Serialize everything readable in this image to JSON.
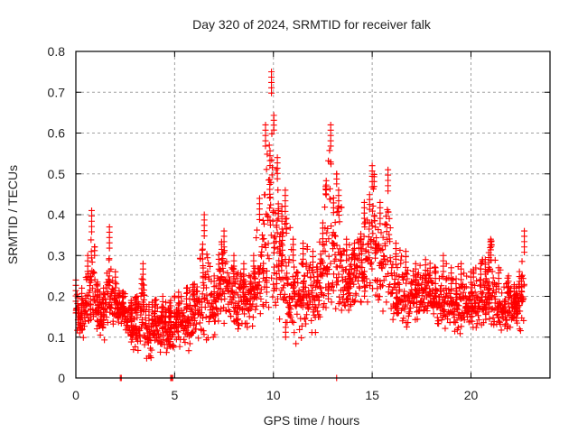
{
  "chart_data": {
    "type": "scatter",
    "title": "Day 320 of 2024, SRMTID for receiver falk",
    "xlabel": "GPS time / hours",
    "ylabel": "SRMTID / TECUs",
    "xlim": [
      0,
      24
    ],
    "ylim": [
      0,
      0.8
    ],
    "xticks": [
      0,
      5,
      10,
      15,
      20
    ],
    "xtick_labels": [
      "0",
      "5",
      "10",
      "15",
      "20"
    ],
    "yticks": [
      0,
      0.1,
      0.2,
      0.3,
      0.4,
      0.5,
      0.6,
      0.7,
      0.8
    ],
    "ytick_labels": [
      "0",
      "0.1",
      "0.2",
      "0.3",
      "0.4",
      "0.5",
      "0.6",
      "0.7",
      "0.8"
    ],
    "grid": true,
    "legend": "none",
    "marker": "plus",
    "color": "#ff0000",
    "series": [
      {
        "name": "SRMTID",
        "envelope": [
          {
            "t": 0.0,
            "lo": 0.1,
            "hi": 0.24
          },
          {
            "t": 0.3,
            "lo": 0.07,
            "hi": 0.22
          },
          {
            "t": 0.6,
            "lo": 0.1,
            "hi": 0.3
          },
          {
            "t": 0.8,
            "lo": 0.12,
            "hi": 0.41
          },
          {
            "t": 1.1,
            "lo": 0.1,
            "hi": 0.23
          },
          {
            "t": 1.4,
            "lo": 0.09,
            "hi": 0.22
          },
          {
            "t": 1.7,
            "lo": 0.1,
            "hi": 0.37
          },
          {
            "t": 2.0,
            "lo": 0.14,
            "hi": 0.26
          },
          {
            "t": 2.4,
            "lo": 0.12,
            "hi": 0.21
          },
          {
            "t": 2.8,
            "lo": 0.08,
            "hi": 0.19
          },
          {
            "t": 3.1,
            "lo": 0.05,
            "hi": 0.2
          },
          {
            "t": 3.4,
            "lo": 0.06,
            "hi": 0.28
          },
          {
            "t": 3.7,
            "lo": 0.03,
            "hi": 0.18
          },
          {
            "t": 4.0,
            "lo": 0.07,
            "hi": 0.19
          },
          {
            "t": 4.4,
            "lo": 0.05,
            "hi": 0.2
          },
          {
            "t": 4.8,
            "lo": 0.06,
            "hi": 0.19
          },
          {
            "t": 5.2,
            "lo": 0.07,
            "hi": 0.21
          },
          {
            "t": 5.6,
            "lo": 0.06,
            "hi": 0.22
          },
          {
            "t": 6.0,
            "lo": 0.08,
            "hi": 0.23
          },
          {
            "t": 6.5,
            "lo": 0.09,
            "hi": 0.4
          },
          {
            "t": 7.0,
            "lo": 0.1,
            "hi": 0.25
          },
          {
            "t": 7.5,
            "lo": 0.12,
            "hi": 0.36
          },
          {
            "t": 8.0,
            "lo": 0.1,
            "hi": 0.3
          },
          {
            "t": 8.5,
            "lo": 0.11,
            "hi": 0.28
          },
          {
            "t": 9.0,
            "lo": 0.12,
            "hi": 0.3
          },
          {
            "t": 9.3,
            "lo": 0.14,
            "hi": 0.44
          },
          {
            "t": 9.6,
            "lo": 0.13,
            "hi": 0.62
          },
          {
            "t": 9.9,
            "lo": 0.15,
            "hi": 0.75
          },
          {
            "t": 10.2,
            "lo": 0.12,
            "hi": 0.54
          },
          {
            "t": 10.6,
            "lo": 0.1,
            "hi": 0.46
          },
          {
            "t": 11.0,
            "lo": 0.08,
            "hi": 0.34
          },
          {
            "t": 11.5,
            "lo": 0.09,
            "hi": 0.33
          },
          {
            "t": 12.0,
            "lo": 0.1,
            "hi": 0.31
          },
          {
            "t": 12.5,
            "lo": 0.13,
            "hi": 0.38
          },
          {
            "t": 12.9,
            "lo": 0.14,
            "hi": 0.62
          },
          {
            "t": 13.3,
            "lo": 0.16,
            "hi": 0.46
          },
          {
            "t": 13.7,
            "lo": 0.14,
            "hi": 0.34
          },
          {
            "t": 14.1,
            "lo": 0.16,
            "hi": 0.33
          },
          {
            "t": 14.6,
            "lo": 0.18,
            "hi": 0.43
          },
          {
            "t": 15.0,
            "lo": 0.17,
            "hi": 0.52
          },
          {
            "t": 15.4,
            "lo": 0.15,
            "hi": 0.43
          },
          {
            "t": 15.8,
            "lo": 0.15,
            "hi": 0.51
          },
          {
            "t": 16.2,
            "lo": 0.11,
            "hi": 0.33
          },
          {
            "t": 16.7,
            "lo": 0.12,
            "hi": 0.31
          },
          {
            "t": 17.2,
            "lo": 0.14,
            "hi": 0.28
          },
          {
            "t": 17.7,
            "lo": 0.14,
            "hi": 0.29
          },
          {
            "t": 18.2,
            "lo": 0.12,
            "hi": 0.27
          },
          {
            "t": 18.6,
            "lo": 0.08,
            "hi": 0.3
          },
          {
            "t": 19.0,
            "lo": 0.11,
            "hi": 0.27
          },
          {
            "t": 19.5,
            "lo": 0.1,
            "hi": 0.28
          },
          {
            "t": 20.0,
            "lo": 0.12,
            "hi": 0.26
          },
          {
            "t": 20.5,
            "lo": 0.12,
            "hi": 0.28
          },
          {
            "t": 21.0,
            "lo": 0.12,
            "hi": 0.34
          },
          {
            "t": 21.4,
            "lo": 0.07,
            "hi": 0.27
          },
          {
            "t": 21.9,
            "lo": 0.12,
            "hi": 0.25
          },
          {
            "t": 22.3,
            "lo": 0.13,
            "hi": 0.22
          },
          {
            "t": 22.7,
            "lo": 0.06,
            "hi": 0.36
          }
        ],
        "zero_points_t": [
          2.25,
          2.3,
          4.8,
          4.85,
          4.9,
          13.2
        ]
      }
    ]
  }
}
